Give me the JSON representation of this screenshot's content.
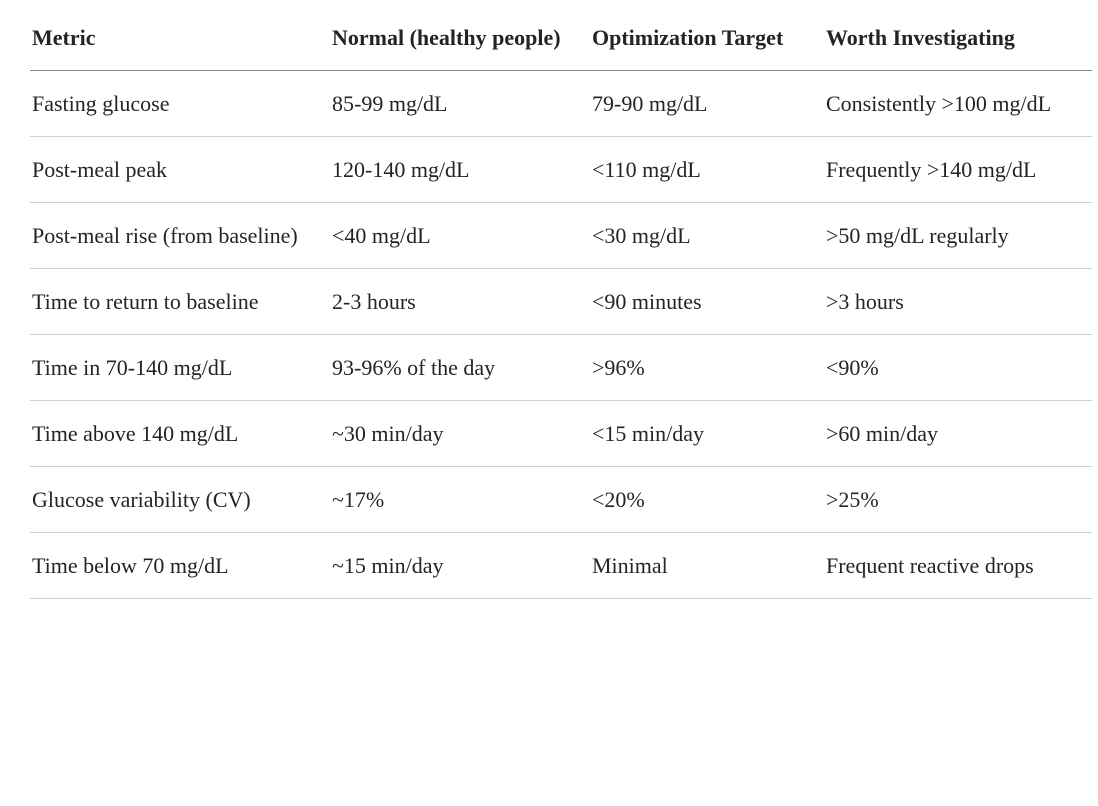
{
  "table": {
    "header": [
      "Metric",
      "Normal (healthy people)",
      "Optimization Target",
      "Worth Investigating"
    ],
    "rows": [
      [
        "Fasting glucose",
        "85-99 mg/dL",
        "79-90 mg/dL",
        "Consistently >100 mg/dL"
      ],
      [
        "Post-meal peak",
        "120-140 mg/dL",
        "<110 mg/dL",
        "Frequently >140 mg/dL"
      ],
      [
        "Post-meal rise (from baseline)",
        "<40 mg/dL",
        "<30 mg/dL",
        ">50 mg/dL regularly"
      ],
      [
        "Time to return to baseline",
        "2-3 hours",
        "<90 minutes",
        ">3 hours"
      ],
      [
        "Time in 70-140 mg/dL",
        "93-96% of the day",
        ">96%",
        "<90%"
      ],
      [
        "Time above 140 mg/dL",
        "~30 min/day",
        "<15 min/day",
        ">60 min/day"
      ],
      [
        "Glucose variability (CV)",
        "~17%",
        "<20%",
        ">25%"
      ],
      [
        "Time below 70 mg/dL",
        "~15 min/day",
        "Minimal",
        "Frequent reactive drops"
      ]
    ]
  }
}
